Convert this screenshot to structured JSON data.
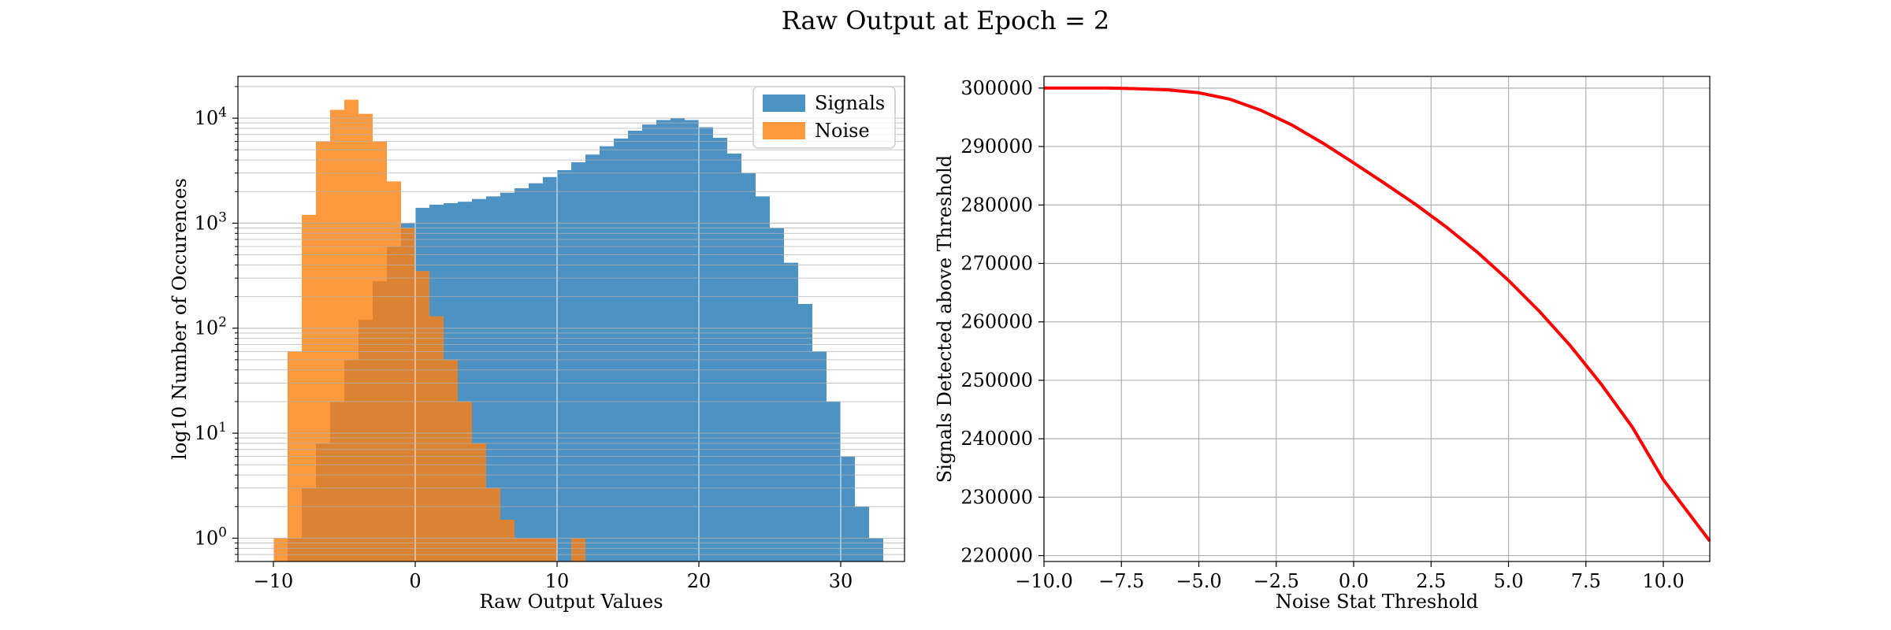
{
  "figure_title": "Raw Output at Epoch = 2",
  "colors": {
    "signals": "#1f77b4",
    "noise": "#ff7f0e",
    "curve": "#ff0000",
    "grid": "#b0b0b0",
    "overlay_grid": "#ffffff"
  },
  "chart_data": [
    {
      "type": "bar",
      "subtype": "histogram",
      "xlabel": "Raw Output Values",
      "ylabel": "log10 Number of Occurences",
      "yscale": "log",
      "xlim": [
        -12.5,
        34.5
      ],
      "ylim": [
        0.6,
        25000
      ],
      "xticks": [
        -10,
        0,
        10,
        20,
        30
      ],
      "xtick_labels": [
        "−10",
        "0",
        "10",
        "20",
        "30"
      ],
      "yticks": [
        1,
        10,
        100,
        1000,
        10000
      ],
      "ytick_labels": [
        {
          "base": "10",
          "exp": "0"
        },
        {
          "base": "10",
          "exp": "1"
        },
        {
          "base": "10",
          "exp": "2"
        },
        {
          "base": "10",
          "exp": "3"
        },
        {
          "base": "10",
          "exp": "4"
        }
      ],
      "grid": true,
      "legend_position": "upper right",
      "series": [
        {
          "name": "Signals",
          "color": "#1f77b4",
          "alpha": 0.8,
          "bins": [
            [
              -9,
              1
            ],
            [
              -8,
              3
            ],
            [
              -7,
              8
            ],
            [
              -6,
              20
            ],
            [
              -5,
              50
            ],
            [
              -4,
              120
            ],
            [
              -3,
              280
            ],
            [
              -2,
              600
            ],
            [
              -1,
              1000
            ],
            [
              0,
              1400
            ],
            [
              1,
              1500
            ],
            [
              2,
              1550
            ],
            [
              3,
              1600
            ],
            [
              4,
              1700
            ],
            [
              5,
              1800
            ],
            [
              6,
              1950
            ],
            [
              7,
              2150
            ],
            [
              8,
              2400
            ],
            [
              9,
              2750
            ],
            [
              10,
              3200
            ],
            [
              11,
              3800
            ],
            [
              12,
              4500
            ],
            [
              13,
              5400
            ],
            [
              14,
              6400
            ],
            [
              15,
              7600
            ],
            [
              16,
              8700
            ],
            [
              17,
              9600
            ],
            [
              18,
              10000
            ],
            [
              19,
              9600
            ],
            [
              20,
              8200
            ],
            [
              21,
              6500
            ],
            [
              22,
              4600
            ],
            [
              23,
              3000
            ],
            [
              24,
              1800
            ],
            [
              25,
              900
            ],
            [
              26,
              420
            ],
            [
              27,
              170
            ],
            [
              28,
              60
            ],
            [
              29,
              20
            ],
            [
              30,
              6
            ],
            [
              31,
              2
            ],
            [
              32,
              1
            ]
          ]
        },
        {
          "name": "Noise",
          "color": "#ff7f0e",
          "alpha": 0.8,
          "bins": [
            [
              -10,
              1
            ],
            [
              -9,
              60
            ],
            [
              -8,
              1200
            ],
            [
              -7,
              6000
            ],
            [
              -6,
              12000
            ],
            [
              -5,
              15000
            ],
            [
              -4,
              11000
            ],
            [
              -3,
              6000
            ],
            [
              -2,
              2500
            ],
            [
              -1,
              900
            ],
            [
              0,
              350
            ],
            [
              1,
              130
            ],
            [
              2,
              50
            ],
            [
              3,
              20
            ],
            [
              4,
              8
            ],
            [
              5,
              3
            ],
            [
              6,
              1.5
            ],
            [
              7,
              1
            ],
            [
              8,
              1
            ],
            [
              9,
              1
            ],
            [
              11,
              1
            ]
          ]
        }
      ]
    },
    {
      "type": "line",
      "xlabel": "Noise Stat Threshold",
      "ylabel": "Signals Detected above Threshold",
      "xlim": [
        -10,
        11.5
      ],
      "ylim": [
        219000,
        302000
      ],
      "xticks": [
        -10,
        -7.5,
        -5,
        -2.5,
        0,
        2.5,
        5,
        7.5,
        10
      ],
      "xtick_labels": [
        "−10.0",
        "−7.5",
        "−5.0",
        "−2.5",
        "0.0",
        "2.5",
        "5.0",
        "7.5",
        "10.0"
      ],
      "yticks": [
        220000,
        230000,
        240000,
        250000,
        260000,
        270000,
        280000,
        290000,
        300000
      ],
      "ytick_labels": [
        "220000",
        "230000",
        "240000",
        "250000",
        "260000",
        "270000",
        "280000",
        "290000",
        "300000"
      ],
      "grid": true,
      "series": [
        {
          "color": "#ff0000",
          "x": [
            -10,
            -9,
            -8,
            -7,
            -6,
            -5,
            -4,
            -3,
            -2,
            -1,
            0,
            1,
            2,
            3,
            4,
            5,
            6,
            7,
            8,
            9,
            10,
            11.5
          ],
          "y": [
            300000,
            300000,
            300000,
            299900,
            299700,
            299200,
            298100,
            296200,
            293700,
            290600,
            287200,
            283700,
            280100,
            276200,
            271900,
            267100,
            261800,
            255900,
            249300,
            242000,
            233000,
            222500
          ]
        }
      ]
    }
  ]
}
